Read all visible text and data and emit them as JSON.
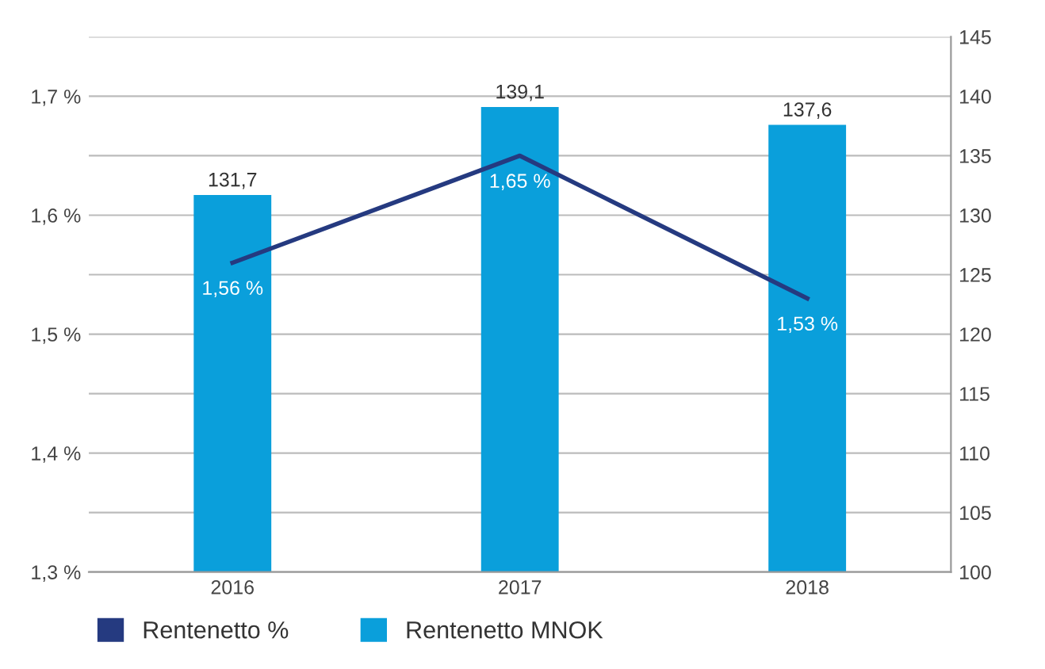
{
  "chart_data": {
    "type": "bar",
    "categories": [
      "2016",
      "2017",
      "2018"
    ],
    "series": [
      {
        "name": "Rentenetto %",
        "type": "line",
        "color": "#253a80",
        "values": [
          1.56,
          1.65,
          1.53
        ],
        "value_labels": [
          "1,56 %",
          "1,65 %",
          "1,53 %"
        ]
      },
      {
        "name": "Rentenetto MNOK",
        "axis": "y2",
        "color": "#0a9fdb",
        "values": [
          131.7,
          139.1,
          137.6
        ],
        "value_labels": [
          "131,7",
          "139,1",
          "137,6"
        ]
      }
    ],
    "ylim": [
      1.3,
      1.75
    ],
    "yticks": [
      {
        "value": 1.3,
        "label": "1,3 %"
      },
      {
        "value": 1.4,
        "label": "1,4 %"
      },
      {
        "value": 1.5,
        "label": "1,5 %"
      },
      {
        "value": 1.6,
        "label": "1,6 %"
      },
      {
        "value": 1.7,
        "label": "1,7 %"
      }
    ],
    "y2lim": [
      100,
      145
    ],
    "y2ticks": [
      100,
      105,
      110,
      115,
      120,
      125,
      130,
      135,
      140,
      145
    ],
    "grid": "y",
    "legend": "bottom left"
  }
}
